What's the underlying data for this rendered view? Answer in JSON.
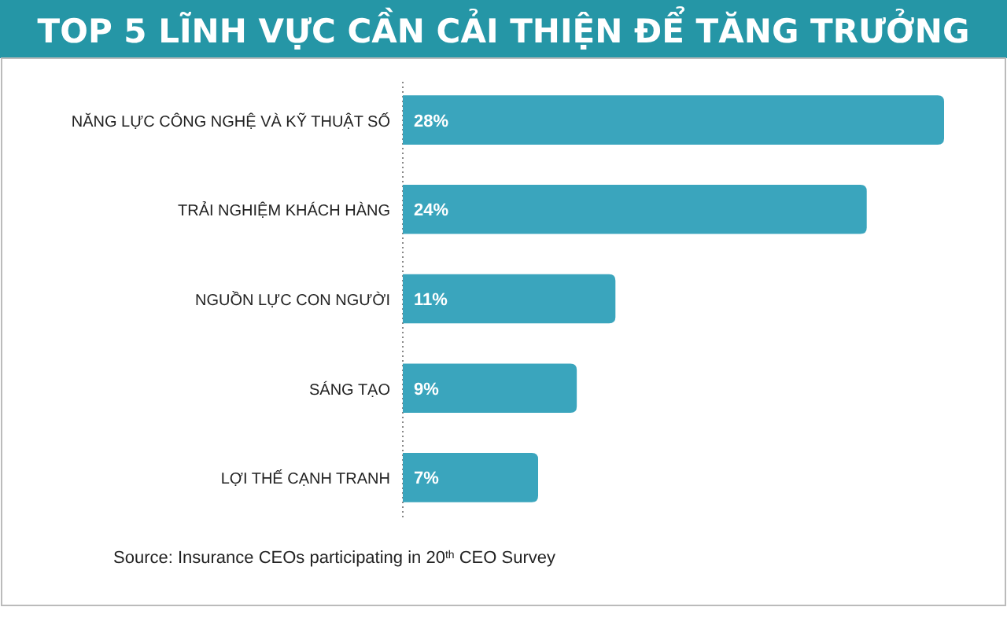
{
  "chart_data": {
    "type": "bar",
    "orientation": "horizontal",
    "title": "TOP 5 LĨNH VỰC CẦN CẢI THIỆN ĐỂ TĂNG TRƯỞNG",
    "categories": [
      "NĂNG LỰC CÔNG NGHỆ VÀ KỸ THUẬT SỐ",
      "TRẢI NGHIỆM KHÁCH HÀNG",
      "NGUỒN LỰC CON NGƯỜI",
      "SÁNG TẠO",
      "LỢI THẾ CẠNH TRANH"
    ],
    "values": [
      28,
      24,
      11,
      9,
      7
    ],
    "value_labels": [
      "28%",
      "24%",
      "11%",
      "9%",
      "7%"
    ],
    "color": "#3aa5bd",
    "annotations": [
      "Source: Insurance CEOs participating in 20$^{th}$ CEO Survey"
    ]
  }
}
